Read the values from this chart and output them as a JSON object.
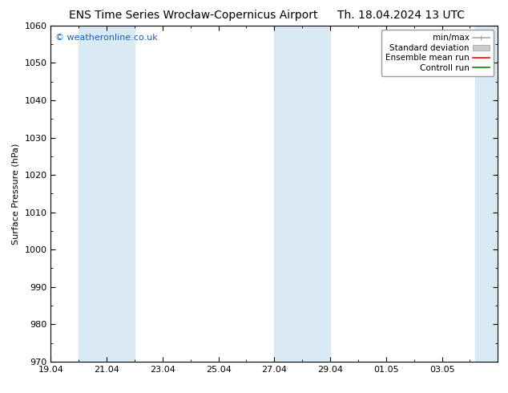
{
  "title_left": "ENS Time Series Wrocław-Copernicus Airport",
  "title_right": "Th. 18.04.2024 13 UTC",
  "ylabel": "Surface Pressure (hPa)",
  "ylim": [
    970,
    1060
  ],
  "yticks": [
    970,
    980,
    990,
    1000,
    1010,
    1020,
    1030,
    1040,
    1050,
    1060
  ],
  "xlim_start": 0,
  "xlim_end": 16,
  "xtick_labels": [
    "19.04",
    "21.04",
    "23.04",
    "25.04",
    "27.04",
    "29.04",
    "01.05",
    "03.05"
  ],
  "xtick_positions": [
    0,
    2,
    4,
    6,
    8,
    10,
    12,
    14
  ],
  "shaded_bands": [
    {
      "xmin": 1.0,
      "xmax": 3.0
    },
    {
      "xmin": 8.0,
      "xmax": 10.0
    },
    {
      "xmin": 15.2,
      "xmax": 16.0
    }
  ],
  "shade_color": "#daeaf5",
  "background_color": "#ffffff",
  "plot_bg_color": "#ffffff",
  "watermark": "© weatheronline.co.uk",
  "watermark_color": "#1a5fa8",
  "title_fontsize": 10,
  "axis_label_fontsize": 8,
  "tick_fontsize": 8,
  "watermark_fontsize": 8,
  "legend_fontsize": 7.5,
  "minmax_color": "#aaaaaa",
  "stddev_color": "#cccccc",
  "ensemble_color": "#ff0000",
  "control_color": "#008800"
}
